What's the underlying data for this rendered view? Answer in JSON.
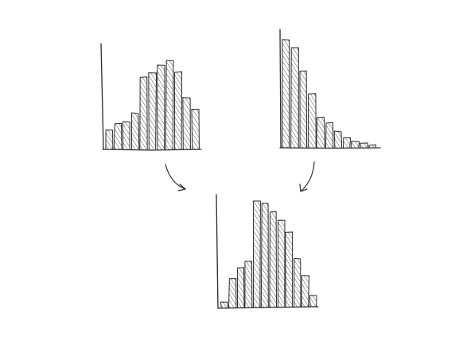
{
  "ink_color": "#2b2b2b",
  "background_color": "#ffffff",
  "chart_data": [
    {
      "type": "bar",
      "role": "input-left",
      "values": [
        2,
        2.7,
        2.9,
        3.8,
        7.6,
        8,
        8.8,
        9.3,
        8.1,
        5.4,
        4.2
      ],
      "ylim": [
        0,
        10
      ]
    },
    {
      "type": "bar",
      "role": "input-right",
      "values": [
        10,
        9.3,
        7.1,
        5,
        2.8,
        2.3,
        1.5,
        0.9,
        0.6,
        0.4,
        0.25
      ],
      "ylim": [
        0,
        10
      ]
    },
    {
      "type": "bar",
      "role": "output",
      "values": [
        0.5,
        2.7,
        3.7,
        4.3,
        10,
        9.8,
        9,
        8.2,
        7.1,
        4.6,
        3,
        1.1
      ],
      "ylim": [
        0,
        10
      ]
    }
  ],
  "arrows": [
    {
      "name": "arrow-left-to-output"
    },
    {
      "name": "arrow-right-to-output"
    }
  ]
}
